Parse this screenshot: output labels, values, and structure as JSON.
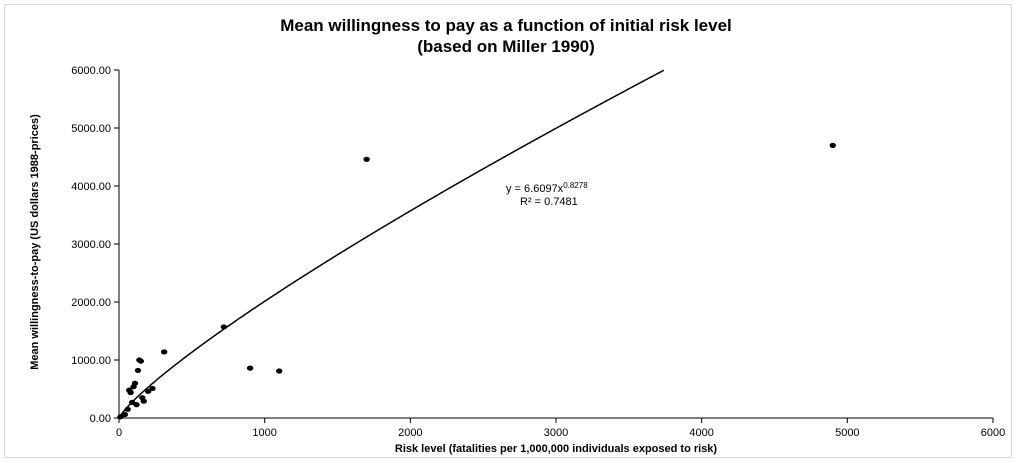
{
  "chart_data": {
    "type": "scatter",
    "title_line1": "Mean willingness to pay as a function of initial risk level",
    "title_line2": "(based on Miller 1990)",
    "xlabel": "Risk level (fatalities per 1,000,000 individuals exposed to risk)",
    "ylabel": "Mean willingness-to-pay (US dollars 1988-prices)",
    "xlim": [
      0,
      6000
    ],
    "ylim": [
      0,
      6000
    ],
    "x_ticks": [
      0,
      1000,
      2000,
      3000,
      4000,
      5000,
      6000
    ],
    "y_ticks": [
      0,
      1000,
      2000,
      3000,
      4000,
      5000,
      6000
    ],
    "x_tick_labels": [
      "0",
      "1000",
      "2000",
      "3000",
      "4000",
      "5000",
      "6000"
    ],
    "y_tick_labels": [
      "0.00",
      "1000.00",
      "2000.00",
      "3000.00",
      "4000.00",
      "5000.00",
      "6000.00"
    ],
    "grid": false,
    "points": [
      {
        "x": 10,
        "y": 20
      },
      {
        "x": 40,
        "y": 60
      },
      {
        "x": 60,
        "y": 150
      },
      {
        "x": 70,
        "y": 480
      },
      {
        "x": 80,
        "y": 440
      },
      {
        "x": 90,
        "y": 270
      },
      {
        "x": 100,
        "y": 540
      },
      {
        "x": 110,
        "y": 600
      },
      {
        "x": 120,
        "y": 230
      },
      {
        "x": 130,
        "y": 820
      },
      {
        "x": 140,
        "y": 1000
      },
      {
        "x": 150,
        "y": 980
      },
      {
        "x": 160,
        "y": 350
      },
      {
        "x": 170,
        "y": 290
      },
      {
        "x": 200,
        "y": 460
      },
      {
        "x": 230,
        "y": 510
      },
      {
        "x": 310,
        "y": 1140
      },
      {
        "x": 720,
        "y": 1570
      },
      {
        "x": 900,
        "y": 860
      },
      {
        "x": 1100,
        "y": 810
      },
      {
        "x": 1700,
        "y": 4460
      },
      {
        "x": 4900,
        "y": 4700
      }
    ],
    "trendline": {
      "type": "power",
      "coefficient": 6.6097,
      "exponent": 0.8278,
      "equation_base": "y = 6.6097x",
      "equation_exp": "0.8278",
      "r_squared_label": "R² = 0.7481"
    },
    "marker_color": "#000000",
    "line_color": "#000000"
  }
}
